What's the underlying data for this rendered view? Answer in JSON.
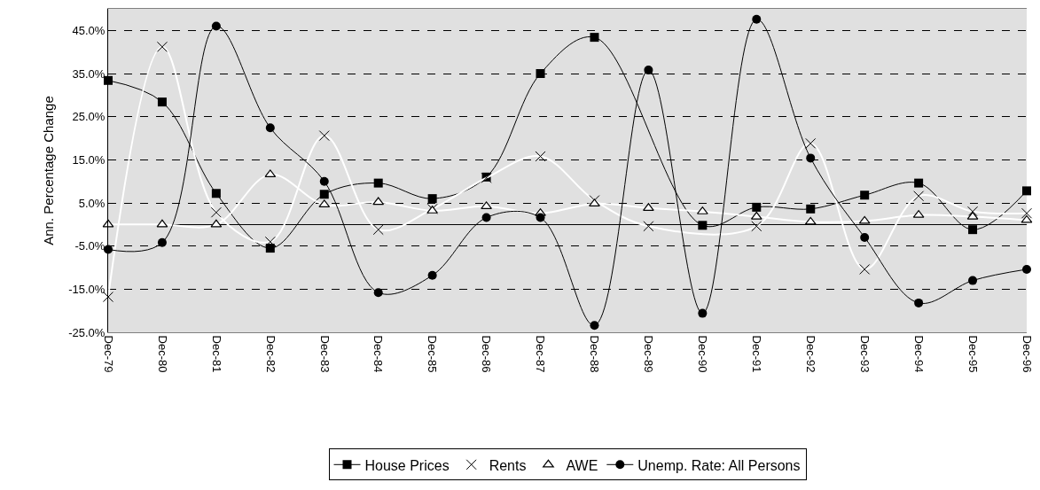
{
  "chart_data": {
    "type": "line",
    "ylabel": "Ann. Percentage Change",
    "categories": [
      "Dec-79",
      "Dec-80",
      "Dec-81",
      "Dec-82",
      "Dec-83",
      "Dec-84",
      "Dec-85",
      "Dec-86",
      "Dec-87",
      "Dec-88",
      "Dec-89",
      "Dec-90",
      "Dec-91",
      "Dec-92",
      "Dec-93",
      "Dec-94",
      "Dec-95",
      "Dec-96"
    ],
    "series": [
      {
        "name": "House Prices",
        "color": "#000000",
        "marker": "square",
        "values": [
          33.4,
          28.4,
          7.2,
          -5.5,
          7.0,
          9.6,
          6.0,
          11,
          35,
          43.4,
          null,
          -0.2,
          4.0,
          3.6,
          6.8,
          9.6,
          -1.2,
          7.8
        ]
      },
      {
        "name": "Rents",
        "color": "#ffffff",
        "marker": "cross",
        "values": [
          -16.8,
          41.2,
          2.8,
          -4,
          20.6,
          -1.2,
          3.6,
          10.8,
          15.8,
          5.6,
          -0.4,
          null,
          -0.4,
          18.8,
          -10.4,
          6.6,
          3,
          2.6
        ]
      },
      {
        "name": "AWE",
        "color": "#ffffff",
        "marker": "triangle",
        "values": [
          0,
          0,
          0,
          11.6,
          4.6,
          5.2,
          3.2,
          4.2,
          2.6,
          4.8,
          3.8,
          3.0,
          1.8,
          0.6,
          0.8,
          2.2,
          1.8,
          1.0
        ]
      },
      {
        "name": "Unemp. Rate: All Persons",
        "color": "#000000",
        "marker": "circle",
        "values": [
          -5.8,
          -4.2,
          46,
          22.4,
          10,
          -15.8,
          -11.8,
          1.6,
          1.6,
          -23.4,
          35.8,
          -20.6,
          47.6,
          15.4,
          -3,
          -18.2,
          -13,
          -10.4
        ]
      }
    ],
    "ylim": [
      -25,
      50
    ],
    "yticks": [
      {
        "value": -25,
        "label": "-25.0%"
      },
      {
        "value": -15,
        "label": "-15.0%"
      },
      {
        "value": -5,
        "label": "-5.0%"
      },
      {
        "value": 5,
        "label": "5.0%"
      },
      {
        "value": 15,
        "label": "15.0%"
      },
      {
        "value": 25,
        "label": "25.0%"
      },
      {
        "value": 35,
        "label": "35.0%"
      },
      {
        "value": 45,
        "label": "45.0%"
      }
    ],
    "grid": "y",
    "legend": "bottom",
    "line_style": "solid"
  }
}
